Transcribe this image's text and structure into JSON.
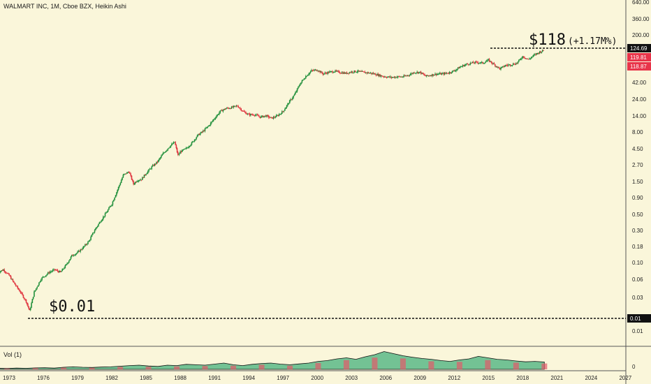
{
  "header": {
    "title": "WALMART INC, 1M, Cboe BZX, Heikin Ashi"
  },
  "volume": {
    "label": "Vol (1)",
    "zero_tick": "0"
  },
  "annotations": {
    "start_price": "$0.01",
    "end_price": "$118",
    "end_change": "(+1.17M%)"
  },
  "price_badges": [
    {
      "value": "124.69",
      "bg": "#111111"
    },
    {
      "value": "119.81",
      "bg": "#e8344a"
    },
    {
      "value": "118.87",
      "bg": "#e8344a"
    },
    {
      "value": "0.01",
      "bg": "#111111"
    }
  ],
  "colors": {
    "up": "#1f8f3a",
    "down": "#e0343e",
    "volume_up": "#45b07c",
    "volume_down": "#e25a6a",
    "background": "#faf6da"
  },
  "chart_data": {
    "type": "candlestick",
    "scale": "log",
    "title": "WALMART INC, 1M, Cboe BZX, Heikin Ashi",
    "x_ticks": [
      "1973",
      "1976",
      "1979",
      "1982",
      "1985",
      "1988",
      "1991",
      "1994",
      "1997",
      "2000",
      "2003",
      "2006",
      "2009",
      "2012",
      "2015",
      "2018",
      "2021",
      "2024",
      "2027"
    ],
    "y_ticks": [
      "640.00",
      "360.00",
      "200.00",
      "124.69",
      "42.00",
      "24.00",
      "14.00",
      "8.00",
      "4.50",
      "2.70",
      "1.50",
      "0.90",
      "0.50",
      "0.30",
      "0.18",
      "0.10",
      "0.06",
      "0.03",
      "0.01",
      "0.01"
    ],
    "series": [
      {
        "name": "price",
        "x": [
          1972.0,
          1972.5,
          1973.0,
          1973.5,
          1974.0,
          1974.5,
          1974.8,
          1975.2,
          1975.8,
          1976.5,
          1977.0,
          1977.5,
          1978.0,
          1978.5,
          1979.0,
          1979.5,
          1980.0,
          1980.5,
          1981.0,
          1981.5,
          1982.0,
          1982.5,
          1983.0,
          1983.5,
          1983.9,
          1984.2,
          1984.6,
          1985.0,
          1985.5,
          1986.0,
          1986.5,
          1987.0,
          1987.5,
          1987.8,
          1988.0,
          1988.5,
          1989.0,
          1989.5,
          1990.0,
          1990.5,
          1991.0,
          1991.5,
          1992.0,
          1992.5,
          1993.0,
          1993.5,
          1994.0,
          1994.5,
          1995.0,
          1995.5,
          1996.0,
          1996.5,
          1997.0,
          1997.5,
          1998.0,
          1998.5,
          1999.0,
          1999.5,
          2000.0,
          2000.5,
          2001.0,
          2001.5,
          2002.0,
          2002.5,
          2003.0,
          2003.5,
          2004.0,
          2004.5,
          2005.0,
          2005.5,
          2006.0,
          2006.5,
          2007.0,
          2007.5,
          2008.0,
          2008.5,
          2009.0,
          2009.5,
          2010.0,
          2010.5,
          2011.0,
          2011.5,
          2012.0,
          2012.5,
          2013.0,
          2013.5,
          2014.0,
          2014.5,
          2015.0,
          2015.5,
          2016.0,
          2016.5,
          2017.0,
          2017.5,
          2018.0,
          2018.5,
          2019.0,
          2019.5,
          2019.9
        ],
        "values": [
          0.05,
          0.055,
          0.045,
          0.033,
          0.025,
          0.018,
          0.013,
          0.025,
          0.04,
          0.05,
          0.055,
          0.05,
          0.065,
          0.09,
          0.1,
          0.12,
          0.15,
          0.22,
          0.3,
          0.4,
          0.55,
          0.9,
          1.5,
          1.7,
          1.1,
          1.25,
          1.3,
          1.6,
          2.0,
          2.4,
          3.2,
          4.0,
          4.8,
          3.0,
          3.4,
          3.8,
          4.6,
          6.0,
          7.0,
          8.5,
          11.0,
          14.0,
          15.5,
          16.0,
          17.0,
          14.0,
          12.5,
          12.5,
          11.5,
          12.0,
          11.0,
          12.0,
          14.0,
          19.0,
          25.0,
          37.0,
          48.0,
          58.0,
          60.0,
          52.0,
          55.0,
          57.0,
          55.0,
          53.0,
          56.0,
          57.0,
          55.0,
          54.0,
          52.0,
          49.0,
          47.0,
          46.0,
          47.0,
          47.0,
          50.0,
          55.0,
          55.0,
          48.0,
          50.0,
          52.0,
          52.0,
          54.0,
          58.0,
          66.0,
          72.0,
          76.0,
          78.0,
          76.0,
          84.0,
          72.0,
          62.0,
          70.0,
          72.0,
          76.0,
          96.0,
          86.0,
          100.0,
          112.0,
          118.87
        ]
      }
    ],
    "volume_relative": [
      0.05,
      0.04,
      0.06,
      0.05,
      0.07,
      0.08,
      0.06,
      0.1,
      0.12,
      0.1,
      0.09,
      0.11,
      0.12,
      0.15,
      0.18,
      0.2,
      0.16,
      0.14,
      0.2,
      0.18,
      0.24,
      0.22,
      0.2,
      0.25,
      0.3,
      0.22,
      0.18,
      0.24,
      0.28,
      0.3,
      0.25,
      0.22,
      0.26,
      0.3,
      0.38,
      0.42,
      0.5,
      0.55,
      0.48,
      0.6,
      0.7,
      0.85,
      0.75,
      0.65,
      0.58,
      0.52,
      0.48,
      0.42,
      0.38,
      0.45,
      0.5,
      0.62,
      0.55,
      0.48,
      0.45,
      0.4,
      0.36,
      0.38,
      0.35
    ]
  }
}
